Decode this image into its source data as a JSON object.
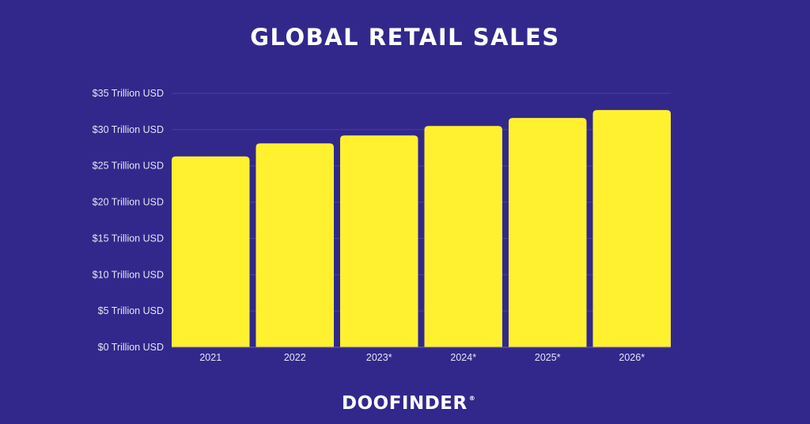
{
  "chart_data": {
    "type": "bar",
    "title": "GLOBAL RETAIL SALES",
    "categories": [
      "2021",
      "2022",
      "2023*",
      "2024*",
      "2025*",
      "2026*"
    ],
    "values": [
      26.3,
      28.1,
      29.2,
      30.5,
      31.6,
      32.7
    ],
    "ylim": [
      0,
      35
    ],
    "yticks": [
      0,
      5,
      10,
      15,
      20,
      25,
      30,
      35
    ],
    "ytick_labels": [
      "$0 Trillion USD",
      "$5 Trillion USD",
      "$10 Trillion USD",
      "$15 Trillion USD",
      "$20 Trillion USD",
      "$25 Trillion USD",
      "$30 Trillion USD",
      "$35 Trillion USD"
    ],
    "xlabel": "",
    "ylabel": "",
    "grid": true,
    "colors": {
      "background": "#32288c",
      "bar": "#fff130",
      "text": "#ffffff"
    }
  },
  "brand": {
    "logo_text": "DOOFINDER",
    "registered": "®"
  }
}
